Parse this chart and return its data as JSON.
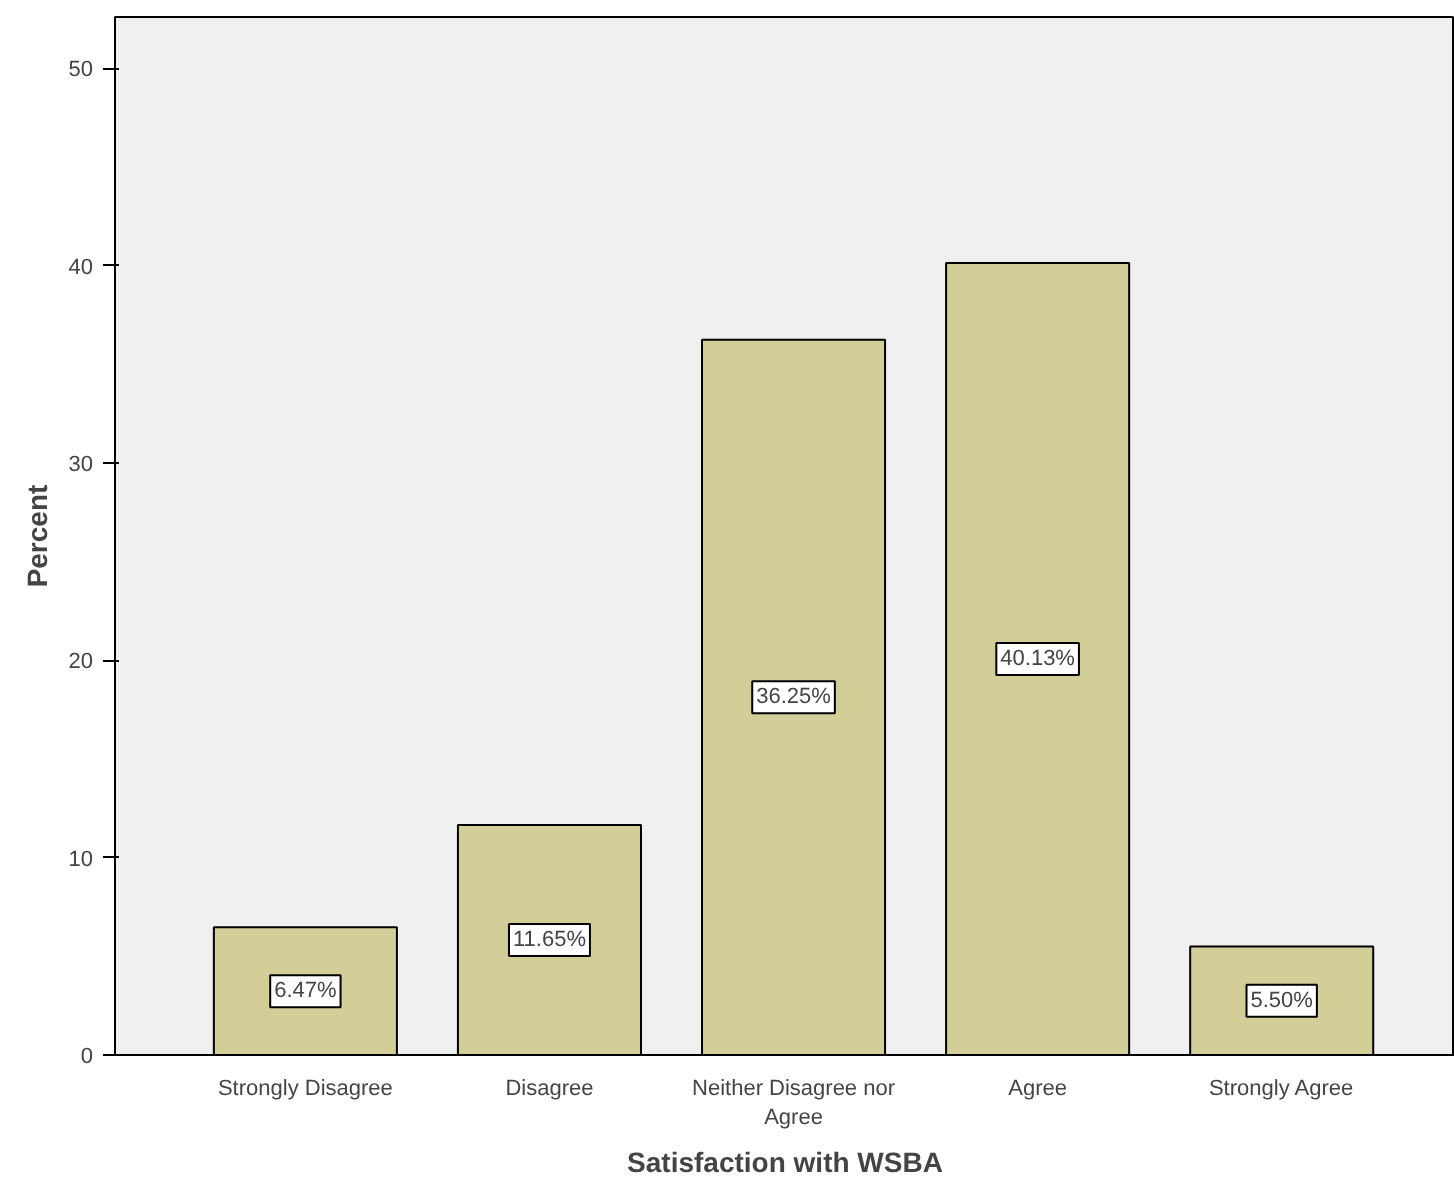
{
  "chart_data": {
    "type": "bar",
    "xlabel": "Satisfaction with WSBA",
    "ylabel": "Percent",
    "categories": [
      "Strongly Disagree",
      "Disagree",
      "Neither Disagree nor Agree",
      "Agree",
      "Strongly Agree"
    ],
    "values": [
      6.47,
      11.65,
      36.25,
      40.13,
      5.5
    ],
    "value_labels": [
      "6.47%",
      "11.65%",
      "36.25%",
      "40.13%",
      "5.50%"
    ],
    "color": "#d3ce97",
    "ylim": [
      0,
      52.6
    ],
    "yticks": [
      0,
      10,
      20,
      30,
      40,
      50
    ],
    "grid": false
  }
}
